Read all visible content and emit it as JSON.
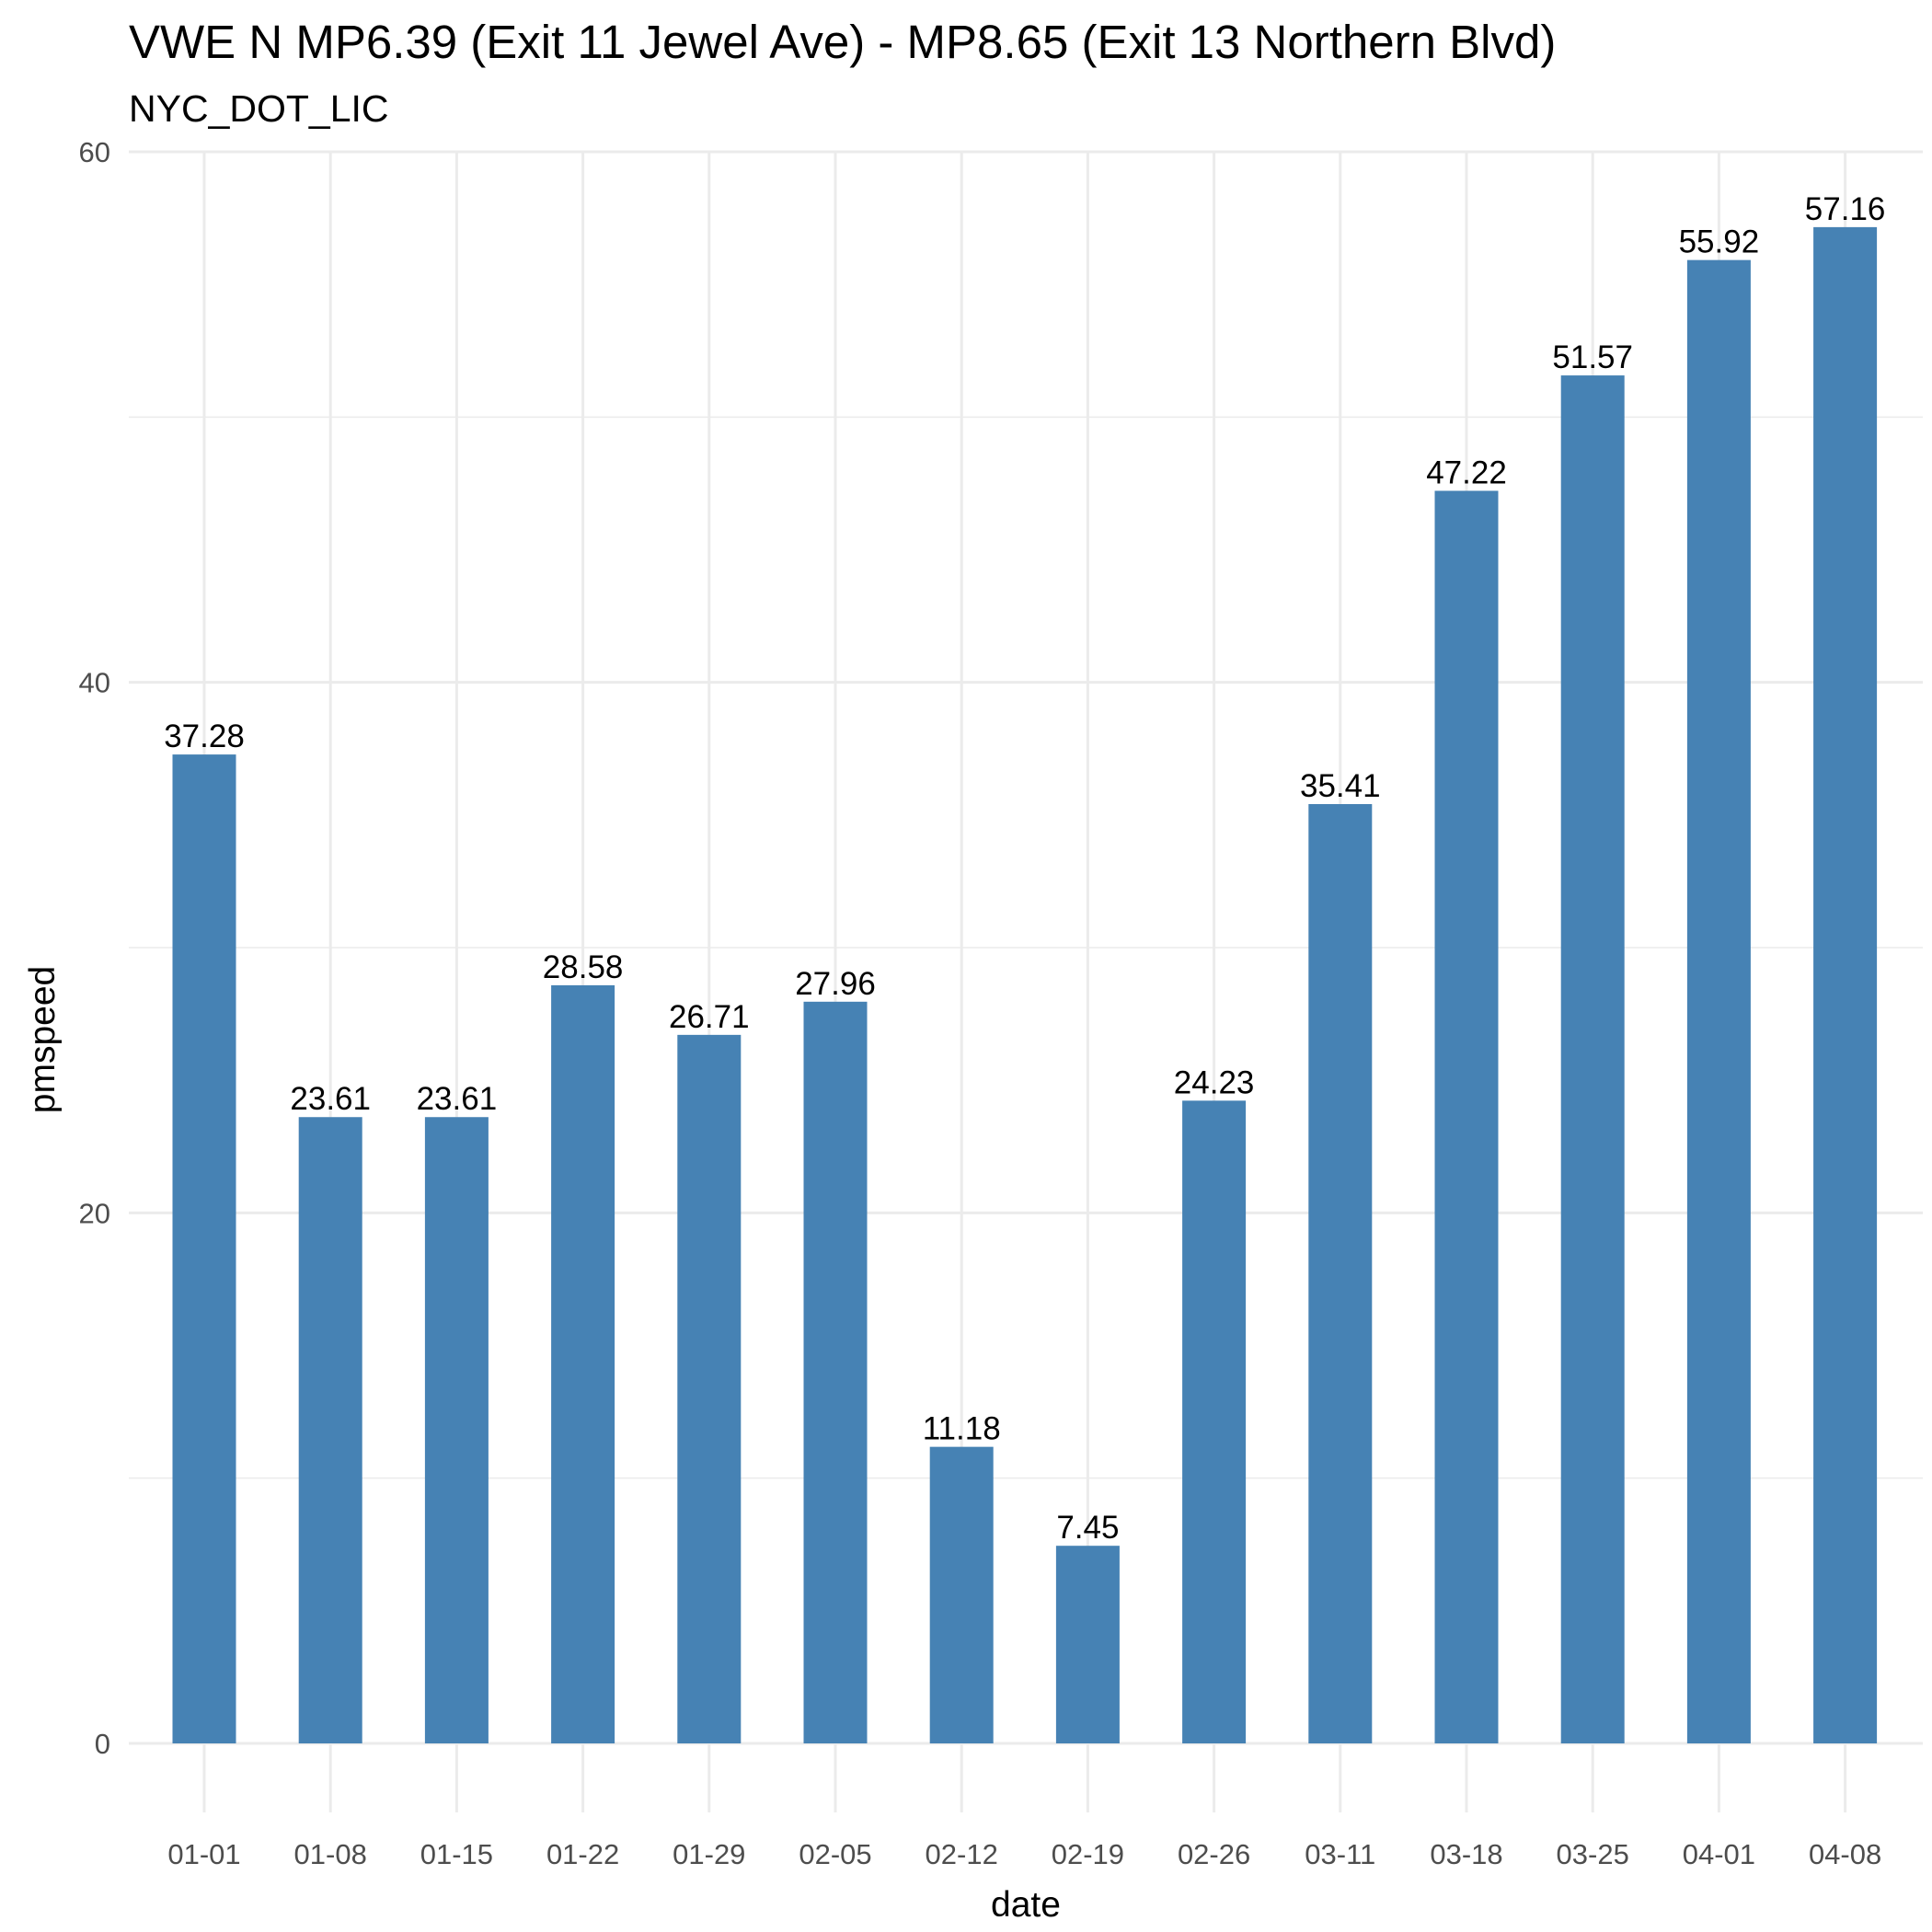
{
  "chart_data": {
    "type": "bar",
    "title": "VWE N MP6.39 (Exit 11 Jewel Ave) - MP8.65 (Exit 13 Northern Blvd)",
    "subtitle": "NYC_DOT_LIC",
    "xlabel": "date",
    "ylabel": "pmspeed",
    "categories": [
      "01-01",
      "01-08",
      "01-15",
      "01-22",
      "01-29",
      "02-05",
      "02-12",
      "02-19",
      "02-26",
      "03-11",
      "03-18",
      "03-25",
      "04-01",
      "04-08"
    ],
    "values": [
      37.28,
      23.61,
      23.61,
      28.58,
      26.71,
      27.96,
      11.18,
      7.45,
      24.23,
      35.41,
      47.22,
      51.57,
      55.92,
      57.16
    ],
    "data_labels": [
      "37.28",
      "23.61",
      "23.61",
      "28.58",
      "26.71",
      "27.96",
      "11.18",
      "7.45",
      "24.23",
      "35.41",
      "47.22",
      "51.57",
      "55.92",
      "57.16"
    ],
    "ylim": [
      0,
      60
    ],
    "yticks": [
      0,
      20,
      40,
      60
    ],
    "ytick_labels": [
      "0",
      "20",
      "40",
      "60"
    ],
    "grid": true,
    "legend": false,
    "bar_color": "#4682b4",
    "grid_color": "#ebebeb"
  }
}
